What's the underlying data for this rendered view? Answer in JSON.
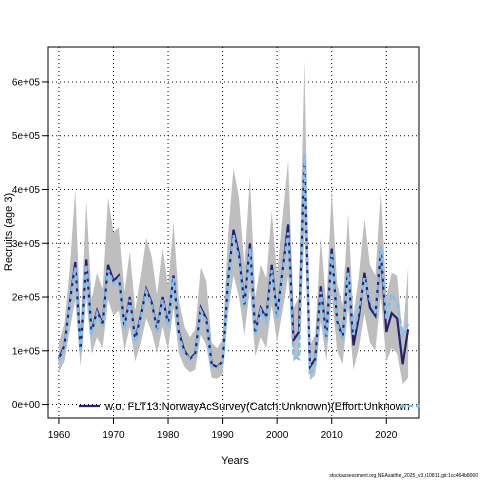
{
  "chart_data": {
    "type": "line",
    "xlabel": "Years",
    "ylabel": "Recruits (age 3)",
    "xlim": [
      1958,
      2026
    ],
    "ylim": [
      -25000,
      665000
    ],
    "x_ticks": [
      1960,
      1970,
      1980,
      1990,
      2000,
      2010,
      2020
    ],
    "y_ticks": [
      0,
      100000,
      200000,
      300000,
      400000,
      500000,
      600000
    ],
    "y_tick_labels": [
      "0e+00",
      "1e+05",
      "2e+05",
      "3e+05",
      "4e+05",
      "5e+05",
      "6e+05"
    ],
    "grid": true,
    "legend_position": "bottom",
    "legend_label": "w.o. FLT13:NorwayAcSurvey(Catch:Unknown)(Effort:Unknown",
    "footer": "stockassessment.org,NEAsaithe_2025_v3,r10811,git:1cc464b8060",
    "colors": {
      "band": "#bebebe",
      "main": "#2a1f6e",
      "alt": "#7ec0ee"
    },
    "x": [
      1960,
      1961,
      1962,
      1963,
      1964,
      1965,
      1966,
      1967,
      1968,
      1969,
      1970,
      1971,
      1972,
      1973,
      1974,
      1975,
      1976,
      1977,
      1978,
      1979,
      1980,
      1981,
      1982,
      1983,
      1984,
      1985,
      1986,
      1987,
      1988,
      1989,
      1990,
      1991,
      1992,
      1993,
      1994,
      1995,
      1996,
      1997,
      1998,
      1999,
      2000,
      2001,
      2002,
      2003,
      2004,
      2005,
      2006,
      2007,
      2008,
      2009,
      2010,
      2011,
      2012,
      2013,
      2014,
      2015,
      2016,
      2017,
      2018,
      2019,
      2020,
      2021,
      2022,
      2023,
      2024
    ],
    "series": [
      {
        "values": [
          85000,
          110000,
          190000,
          265000,
          100000,
          270000,
          135000,
          175000,
          150000,
          260000,
          230000,
          240000,
          145000,
          200000,
          120000,
          165000,
          215000,
          190000,
          140000,
          200000,
          150000,
          240000,
          135000,
          100000,
          85000,
          95000,
          180000,
          160000,
          75000,
          70000,
          80000,
          230000,
          325000,
          280000,
          185000,
          300000,
          135000,
          180000,
          160000,
          260000,
          165000,
          250000,
          335000,
          120000,
          135000,
          455000,
          70000,
          85000,
          220000,
          125000,
          290000,
          155000,
          125000,
          255000,
          110000,
          165000,
          245000,
          180000,
          165000,
          285000,
          135000,
          170000,
          160000,
          75000,
          140000
        ],
        "lower": [
          60000,
          80000,
          140000,
          195000,
          70000,
          200000,
          95000,
          125000,
          105000,
          195000,
          165000,
          175000,
          100000,
          145000,
          80000,
          115000,
          160000,
          135000,
          95000,
          145000,
          100000,
          180000,
          95000,
          70000,
          60000,
          65000,
          130000,
          110000,
          50000,
          48000,
          55000,
          170000,
          240000,
          200000,
          130000,
          215000,
          90000,
          125000,
          105000,
          185000,
          115000,
          175000,
          240000,
          80000,
          90000,
          320000,
          45000,
          55000,
          155000,
          80000,
          205000,
          100000,
          75000,
          180000,
          65000,
          105000,
          170000,
          115000,
          100000,
          200000,
          80000,
          105000,
          95000,
          38000,
          50000
        ],
        "upper": [
          115000,
          150000,
          255000,
          400000,
          145000,
          380000,
          195000,
          245000,
          215000,
          385000,
          320000,
          330000,
          210000,
          285000,
          175000,
          240000,
          310000,
          275000,
          205000,
          290000,
          220000,
          340000,
          195000,
          145000,
          125000,
          140000,
          255000,
          230000,
          115000,
          105000,
          120000,
          315000,
          440000,
          385000,
          260000,
          425000,
          200000,
          260000,
          235000,
          360000,
          240000,
          350000,
          455000,
          180000,
          200000,
          640000,
          110000,
          130000,
          310000,
          185000,
          400000,
          225000,
          185000,
          355000,
          165000,
          240000,
          345000,
          260000,
          240000,
          395000,
          200000,
          245000,
          240000,
          125000,
          255000
        ]
      },
      {
        "values": [
          80000,
          105000,
          185000,
          255000,
          95000,
          260000,
          130000,
          170000,
          145000,
          250000,
          225000,
          235000,
          140000,
          195000,
          115000,
          160000,
          210000,
          185000,
          135000,
          195000,
          145000,
          235000,
          130000,
          95000,
          85000,
          90000,
          175000,
          155000,
          70000,
          68000,
          78000,
          225000,
          315000,
          270000,
          180000,
          290000,
          130000,
          175000,
          155000,
          250000,
          160000,
          245000,
          320000,
          90000,
          85000,
          465000,
          55000,
          75000,
          210000,
          120000,
          280000,
          150000,
          120000,
          245000,
          130000,
          180000,
          235000,
          195000,
          170000,
          295000,
          160000,
          205000,
          190000,
          130000,
          150000
        ]
      }
    ]
  }
}
